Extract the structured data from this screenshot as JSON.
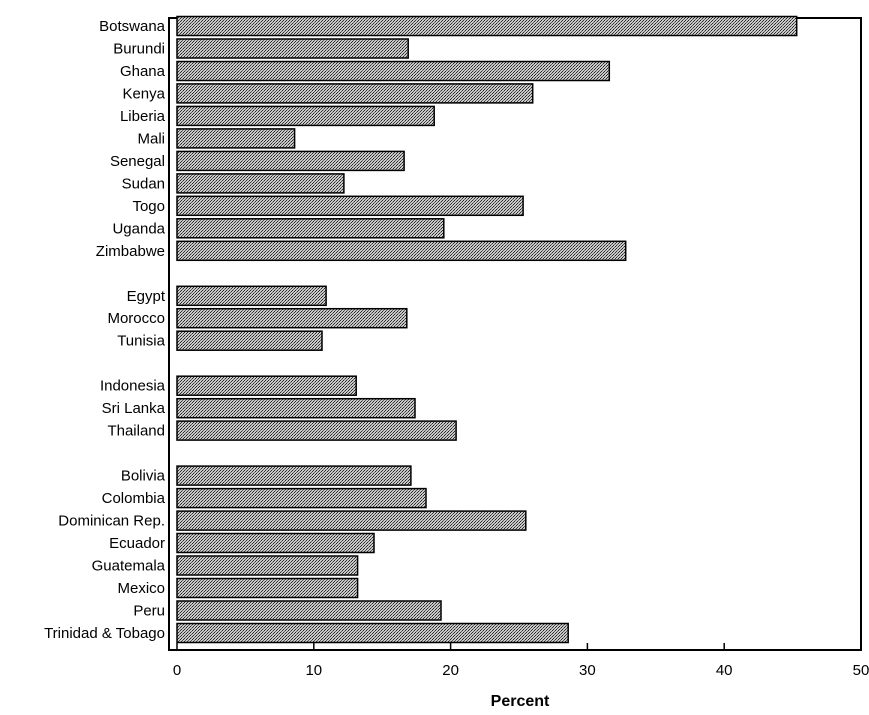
{
  "chart_data": {
    "type": "bar",
    "orientation": "horizontal",
    "title": "",
    "xlabel": "Percent",
    "ylabel": "",
    "xlim": [
      0,
      50
    ],
    "x_ticks": [
      0,
      10,
      20,
      30,
      40,
      50
    ],
    "grid": false,
    "legend": "none",
    "bar_fill": "#8a8a8a",
    "groups": [
      {
        "categories": [
          "Botswana",
          "Burundi",
          "Ghana",
          "Kenya",
          "Liberia",
          "Mali",
          "Senegal",
          "Sudan",
          "Togo",
          "Uganda",
          "Zimbabwe"
        ],
        "values": [
          45.3,
          16.9,
          31.6,
          26.0,
          18.8,
          8.6,
          16.6,
          12.2,
          25.3,
          19.5,
          32.8
        ]
      },
      {
        "categories": [
          "Egypt",
          "Morocco",
          "Tunisia"
        ],
        "values": [
          10.9,
          16.8,
          10.6
        ]
      },
      {
        "categories": [
          "Indonesia",
          "Sri Lanka",
          "Thailand"
        ],
        "values": [
          13.1,
          17.4,
          20.4
        ]
      },
      {
        "categories": [
          "Bolivia",
          "Colombia",
          "Dominican Rep.",
          "Ecuador",
          "Guatemala",
          "Mexico",
          "Peru",
          "Trinidad & Tobago"
        ],
        "values": [
          17.1,
          18.2,
          25.5,
          14.4,
          13.2,
          13.2,
          19.3,
          28.6
        ]
      }
    ]
  }
}
